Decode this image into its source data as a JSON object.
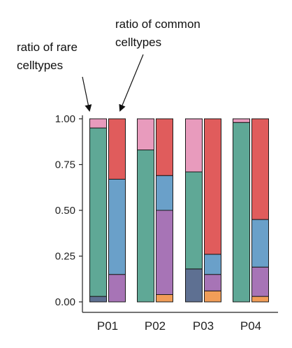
{
  "chart_data": {
    "type": "bar",
    "stacked": true,
    "categories": [
      "P01",
      "P02",
      "P03",
      "P04"
    ],
    "bars_per_category": [
      {
        "name": "ratio of rare celltypes"
      },
      {
        "name": "ratio of common celltypes"
      }
    ],
    "ylim": [
      0,
      1
    ],
    "yticks": [
      "0.00",
      "0.25",
      "0.50",
      "0.75",
      "1.00"
    ],
    "annotations": [
      {
        "id": "rare",
        "text": [
          "ratio of rare",
          "celltypes"
        ],
        "target": "P01-rare"
      },
      {
        "id": "common",
        "text": [
          "ratio of common",
          "celltypes"
        ],
        "target": "P01-common"
      }
    ],
    "colors": {
      "green": "#5fa896",
      "red": "#e05c5c",
      "pink": "#e89bbd",
      "blue": "#6aa0c9",
      "purple": "#a774b6",
      "navy": "#5e7092",
      "orange": "#f19d58"
    },
    "stacks": [
      {
        "category": "P01",
        "bar": "rare",
        "segments": [
          {
            "color": "#5e7092",
            "start": 0.0,
            "end": 0.03
          },
          {
            "color": "#5fa896",
            "start": 0.03,
            "end": 0.95
          },
          {
            "color": "#e89bbd",
            "start": 0.95,
            "end": 1.0
          }
        ]
      },
      {
        "category": "P01",
        "bar": "common",
        "segments": [
          {
            "color": "#a774b6",
            "start": 0.0,
            "end": 0.15
          },
          {
            "color": "#6aa0c9",
            "start": 0.15,
            "end": 0.67
          },
          {
            "color": "#e05c5c",
            "start": 0.67,
            "end": 1.0
          }
        ]
      },
      {
        "category": "P02",
        "bar": "rare",
        "segments": [
          {
            "color": "#5fa896",
            "start": 0.0,
            "end": 0.83
          },
          {
            "color": "#e89bbd",
            "start": 0.83,
            "end": 1.0
          }
        ]
      },
      {
        "category": "P02",
        "bar": "common",
        "segments": [
          {
            "color": "#f19d58",
            "start": 0.0,
            "end": 0.04
          },
          {
            "color": "#a774b6",
            "start": 0.04,
            "end": 0.5
          },
          {
            "color": "#6aa0c9",
            "start": 0.5,
            "end": 0.69
          },
          {
            "color": "#e05c5c",
            "start": 0.69,
            "end": 1.0
          }
        ]
      },
      {
        "category": "P03",
        "bar": "rare",
        "segments": [
          {
            "color": "#5e7092",
            "start": 0.0,
            "end": 0.18
          },
          {
            "color": "#5fa896",
            "start": 0.18,
            "end": 0.71
          },
          {
            "color": "#e89bbd",
            "start": 0.71,
            "end": 1.0
          }
        ]
      },
      {
        "category": "P03",
        "bar": "common",
        "segments": [
          {
            "color": "#f19d58",
            "start": 0.0,
            "end": 0.06
          },
          {
            "color": "#a774b6",
            "start": 0.06,
            "end": 0.15
          },
          {
            "color": "#6aa0c9",
            "start": 0.15,
            "end": 0.26
          },
          {
            "color": "#e05c5c",
            "start": 0.26,
            "end": 1.0
          }
        ]
      },
      {
        "category": "P04",
        "bar": "rare",
        "segments": [
          {
            "color": "#5fa896",
            "start": 0.0,
            "end": 0.98
          },
          {
            "color": "#e89bbd",
            "start": 0.98,
            "end": 1.0
          }
        ]
      },
      {
        "category": "P04",
        "bar": "common",
        "segments": [
          {
            "color": "#f19d58",
            "start": 0.0,
            "end": 0.03
          },
          {
            "color": "#a774b6",
            "start": 0.03,
            "end": 0.19
          },
          {
            "color": "#6aa0c9",
            "start": 0.19,
            "end": 0.45
          },
          {
            "color": "#e05c5c",
            "start": 0.45,
            "end": 1.0
          }
        ]
      }
    ]
  }
}
